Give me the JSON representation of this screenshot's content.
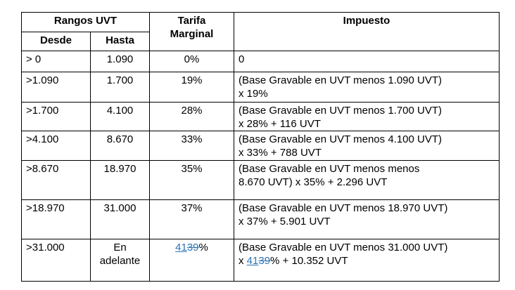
{
  "table": {
    "header": {
      "rangos": "Rangos UVT",
      "desde": "Desde",
      "hasta": "Hasta",
      "tarifa": [
        "Tarifa",
        "Marginal"
      ],
      "impuesto": "Impuesto"
    },
    "rows": [
      {
        "desde": "> 0",
        "hasta": [
          "1.090"
        ],
        "tarifa": {
          "text": "0%"
        },
        "impuesto": [
          {
            "text": "0"
          }
        ]
      },
      {
        "desde": ">1.090",
        "hasta": [
          "1.700"
        ],
        "tarifa": {
          "text": "19%"
        },
        "impuesto": [
          {
            "text": "(Base Gravable en  UVT menos 1.090 UVT)"
          },
          {
            "text": "x 19%"
          }
        ]
      },
      {
        "desde": ">1.700",
        "hasta": [
          "4.100"
        ],
        "tarifa": {
          "text": "28%"
        },
        "impuesto": [
          {
            "text": "(Base Gravable en  UVT menos 1.700 UVT)"
          },
          {
            "text": "x 28% + 116 UVT"
          }
        ]
      },
      {
        "desde": ">4.100",
        "hasta": [
          "8.670"
        ],
        "tarifa": {
          "text": "33%"
        },
        "impuesto": [
          {
            "text": "(Base Gravable en  UVT menos 4.100 UVT)"
          },
          {
            "text": "x 33% + 788 UVT"
          }
        ]
      },
      {
        "desde": ">8.670",
        "hasta": [
          "18.970"
        ],
        "tarifa": {
          "text": "35%"
        },
        "impuesto": [
          {
            "text": "(Base Gravable en  UVT menos menos"
          },
          {
            "text": "8.670 UVT) x 35% + 2.296 UVT"
          }
        ]
      },
      {
        "desde": ">18.970",
        "hasta": [
          "31.000"
        ],
        "tarifa": {
          "text": "37%"
        },
        "impuesto": [
          {
            "text": "(Base Gravable en  UVT menos 18.970 UVT)"
          },
          {
            "text": "x 37% + 5.901 UVT"
          }
        ]
      },
      {
        "desde": ">31.000",
        "hasta": [
          "En",
          "adelante"
        ],
        "tarifa": {
          "inserted": "41",
          "deleted": "39",
          "after": "%"
        },
        "impuesto": [
          {
            "text": "(Base Gravable en  UVT menos 31.000 UVT)"
          },
          {
            "before": "x ",
            "inserted": "41",
            "deleted": "39",
            "after": "% + 10.352 UVT"
          }
        ]
      }
    ]
  }
}
